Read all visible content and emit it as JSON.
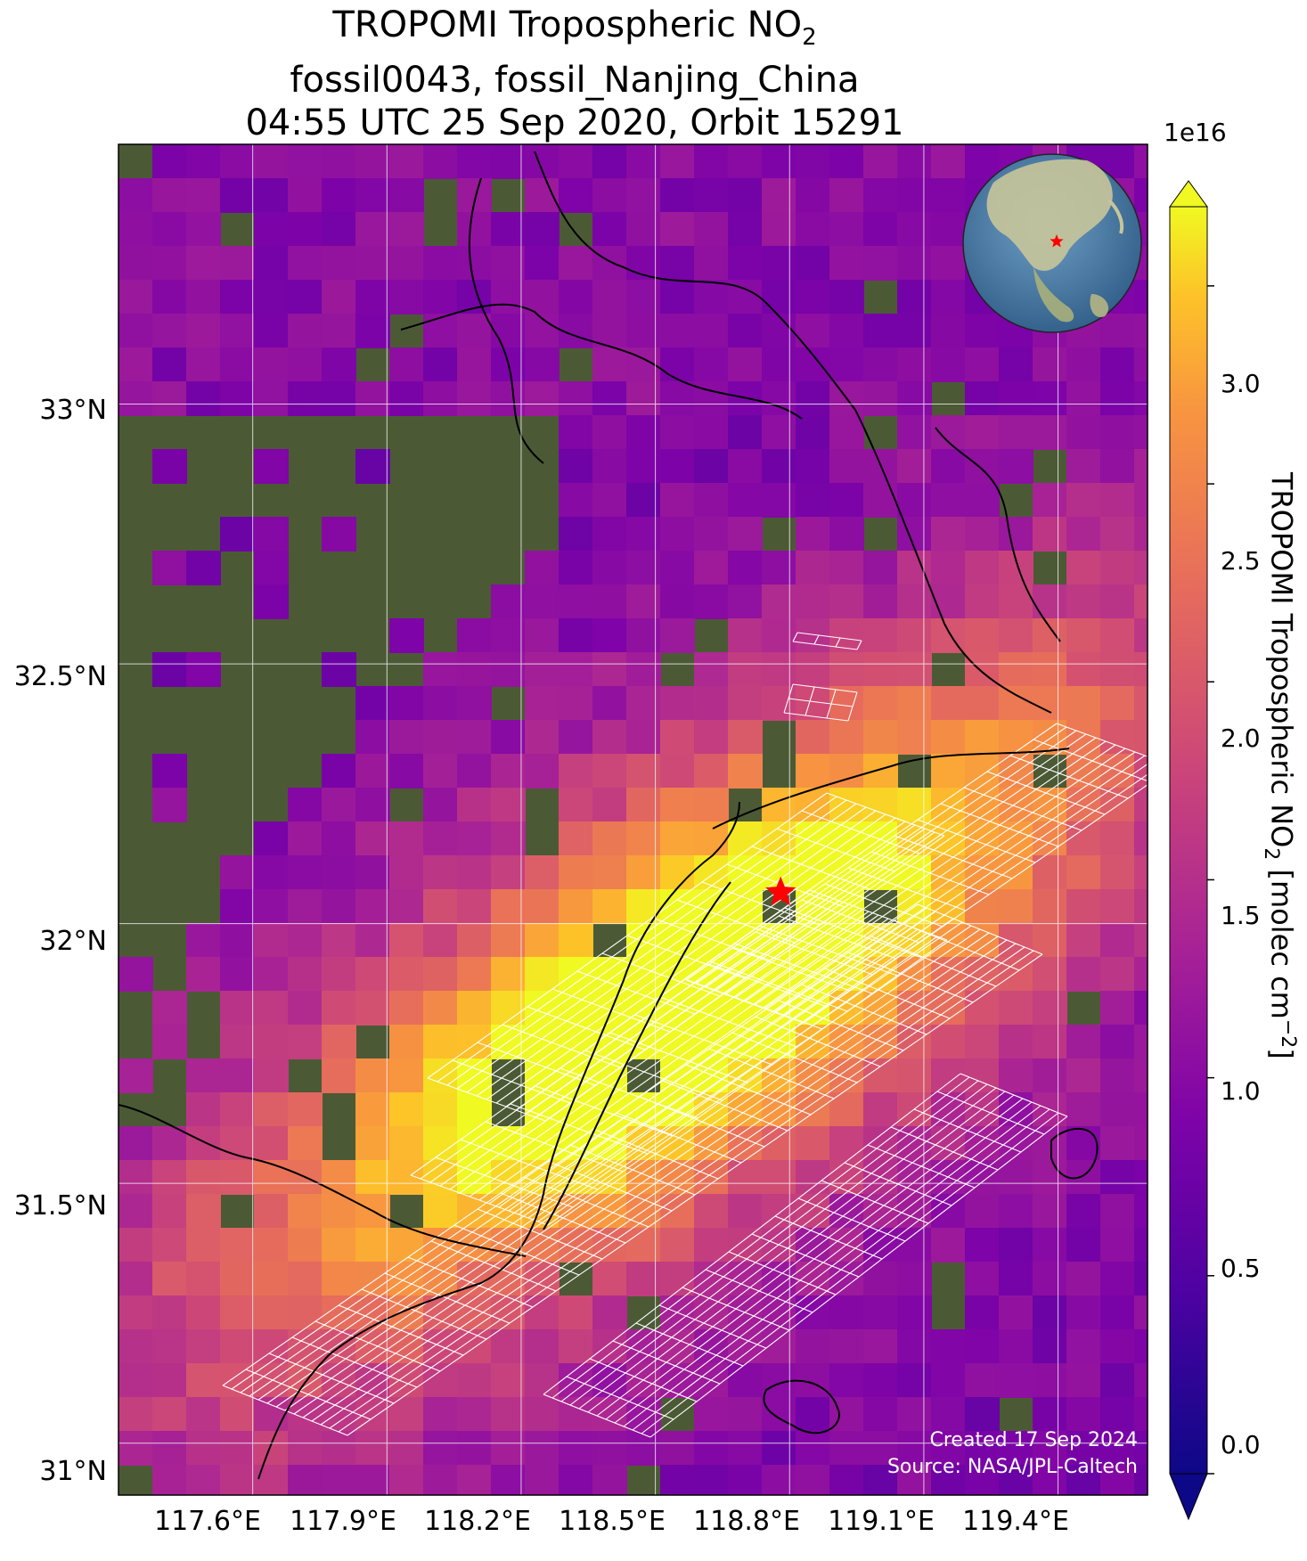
{
  "title": {
    "line1_prefix": "TROPOMI Tropospheric NO",
    "line1_sub": "2",
    "line2": "fossil0043, fossil_Nanjing_China",
    "line3": "04:55 UTC 25 Sep 2020, Orbit 15291"
  },
  "map": {
    "lat_ticks": [
      "33°N",
      "32.5°N",
      "32°N",
      "31.5°N",
      "31°N"
    ],
    "lon_ticks": [
      "117.6°E",
      "117.9°E",
      "118.2°E",
      "118.5°E",
      "118.8°E",
      "119.1°E",
      "119.4°E"
    ],
    "lat_range": [
      30.9,
      33.5
    ],
    "lon_range": [
      117.3,
      119.6
    ],
    "target_marker": {
      "lon": 118.78,
      "lat": 32.06,
      "color": "#ff0000"
    },
    "credit_line1": "Created 17 Sep 2024",
    "credit_line2": "Source: NASA/JPL-Caltech",
    "background_colormap": "plasma",
    "land_color": "#4a5a36",
    "grid_color": "#ffffff"
  },
  "colorbar": {
    "label_prefix": "TROPOMI Tropospheric NO",
    "label_sub": "2",
    "label_units": " [molec cm",
    "label_units_sup": "−2",
    "label_suffix": "]",
    "exponent": "1e16",
    "ticks": [
      "0.0",
      "0.5",
      "1.0",
      "1.5",
      "2.0",
      "2.5",
      "3.0"
    ],
    "range": [
      0.0,
      3.2
    ]
  },
  "globe": {
    "ocean_color": "#4a80a8",
    "land_color": "#c8c59a",
    "marker_color": "#ff0000"
  }
}
